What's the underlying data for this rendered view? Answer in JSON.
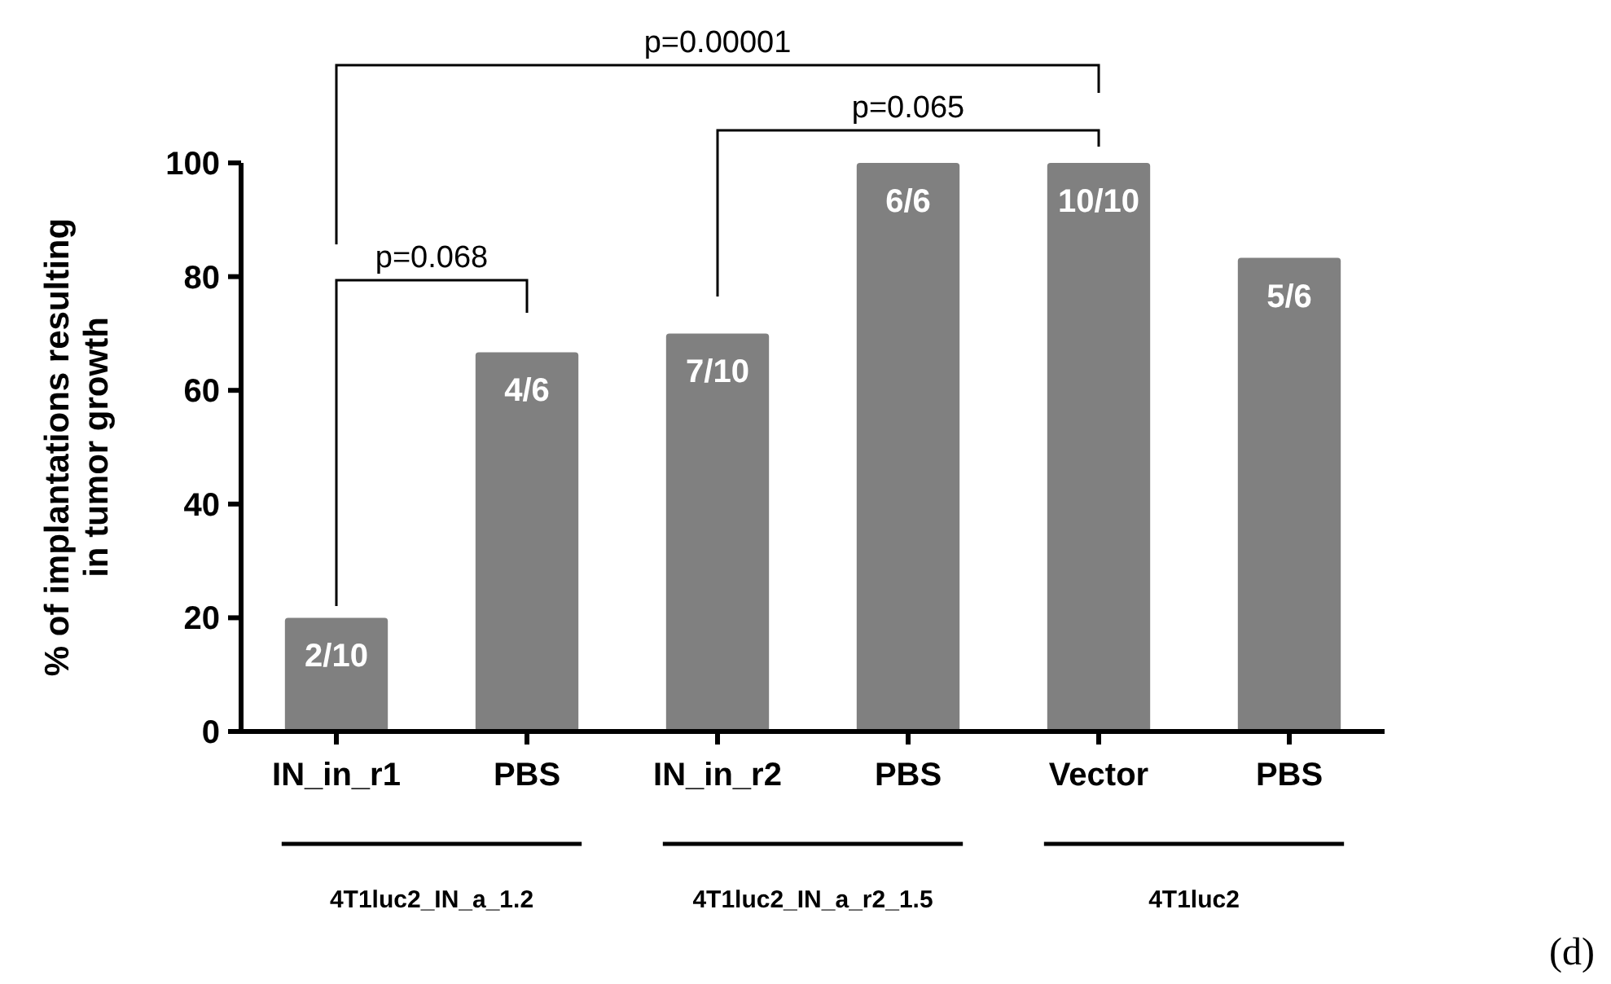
{
  "chart_data": {
    "type": "bar",
    "ylabel": "% of implantations resulting\nin tumor growth",
    "categories": [
      "IN_in_r1",
      "PBS",
      "IN_in_r2",
      "PBS",
      "Vector",
      "PBS"
    ],
    "values": [
      20,
      66.7,
      70,
      100,
      100,
      83.3
    ],
    "color": "#808080",
    "ylim": [
      0,
      100
    ],
    "yticks": [
      0,
      20,
      40,
      60,
      80,
      100
    ],
    "grid": false,
    "annotations": [
      "p=0.00001",
      "p=0.065",
      "p=0.068",
      "2/10",
      "4/6",
      "7/10",
      "6/6",
      "10/10",
      "5/6",
      "4T1luc2_IN_a_1.2",
      "4T1luc2_IN_a_r2_1.5",
      "4T1luc2",
      "(d)"
    ]
  }
}
